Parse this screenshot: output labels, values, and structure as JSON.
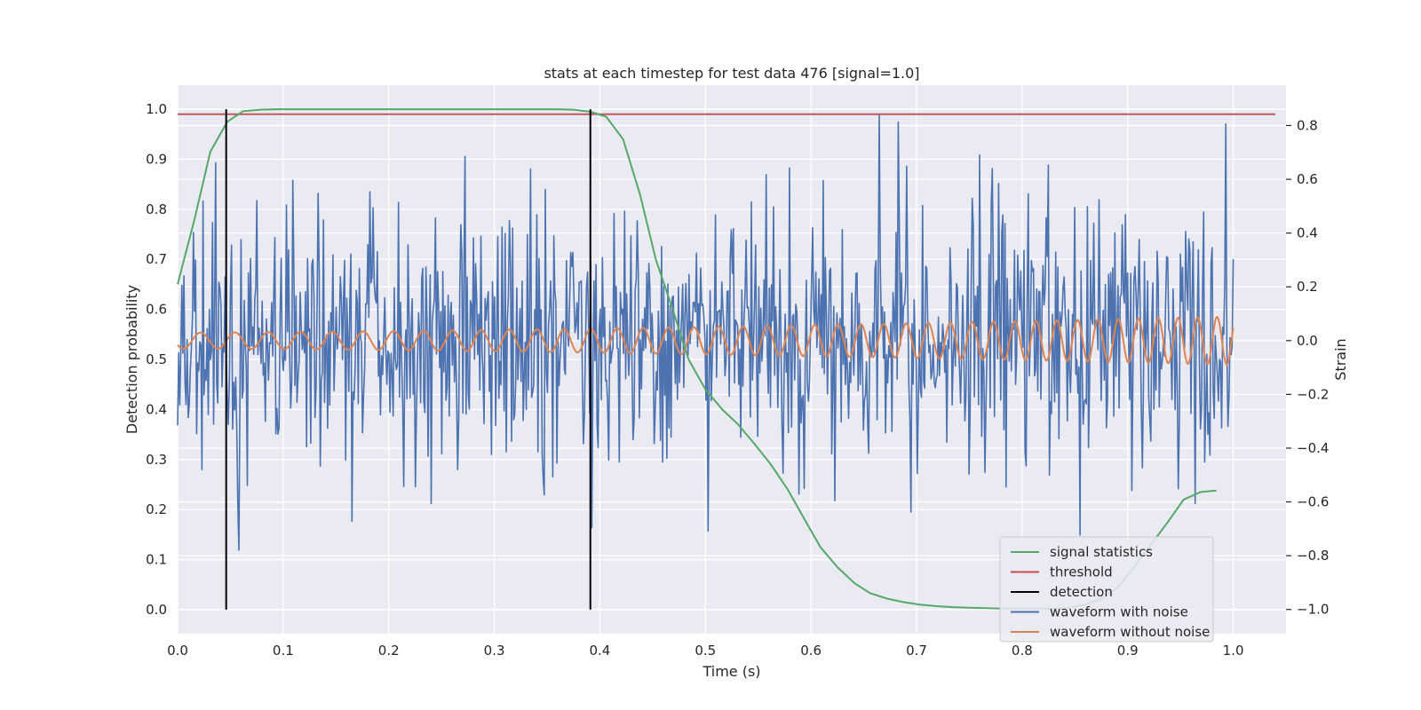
{
  "chart_data": {
    "type": "line",
    "title": "stats at each timestep for test data 476 [signal=1.0]",
    "xlabel": "Time (s)",
    "ylabel_left": "Detection probability",
    "ylabel_right": "Strain",
    "xlim": [
      0.0,
      1.05
    ],
    "ylim_left": [
      -0.048,
      1.048
    ],
    "ylim_right": [
      -1.09,
      0.95
    ],
    "x_ticks": [
      "0.0",
      "0.1",
      "0.2",
      "0.3",
      "0.4",
      "0.5",
      "0.6",
      "0.7",
      "0.8",
      "0.9",
      "1.0"
    ],
    "x_tick_values": [
      0.0,
      0.1,
      0.2,
      0.3,
      0.4,
      0.5,
      0.6,
      0.7,
      0.8,
      0.9,
      1.0
    ],
    "y_left_ticks": [
      "0.0",
      "0.1",
      "0.2",
      "0.3",
      "0.4",
      "0.5",
      "0.6",
      "0.7",
      "0.8",
      "0.9",
      "1.0"
    ],
    "y_left_tick_values": [
      0.0,
      0.1,
      0.2,
      0.3,
      0.4,
      0.5,
      0.6,
      0.7,
      0.8,
      0.9,
      1.0
    ],
    "y_right_ticks": [
      "−1.0",
      "−0.8",
      "−0.6",
      "−0.4",
      "−0.2",
      "0.0",
      "0.2",
      "0.4",
      "0.6",
      "0.8"
    ],
    "y_right_tick_values": [
      -1.0,
      -0.8,
      -0.6,
      -0.4,
      -0.2,
      0.0,
      0.2,
      0.4,
      0.6,
      0.8
    ],
    "grid": true,
    "legend_position": "bottom-right",
    "legend": [
      {
        "label": "signal statistics",
        "color": "#55a868"
      },
      {
        "label": "threshold",
        "color": "#c44e52"
      },
      {
        "label": "detection",
        "color": "#000000"
      },
      {
        "label": "waveform with noise",
        "color": "#4c72b0"
      },
      {
        "label": "waveform without noise",
        "color": "#dd8452"
      }
    ],
    "series": [
      {
        "name": "signal statistics",
        "axis": "left",
        "color": "#55a868",
        "x": [
          0.0,
          0.016,
          0.031,
          0.047,
          0.062,
          0.078,
          0.094,
          0.109,
          0.125,
          0.14,
          0.156,
          0.172,
          0.188,
          0.203,
          0.219,
          0.234,
          0.25,
          0.266,
          0.281,
          0.297,
          0.312,
          0.328,
          0.344,
          0.359,
          0.375,
          0.391,
          0.406,
          0.422,
          0.438,
          0.453,
          0.469,
          0.484,
          0.5,
          0.516,
          0.531,
          0.547,
          0.562,
          0.578,
          0.594,
          0.609,
          0.625,
          0.641,
          0.656,
          0.672,
          0.688,
          0.703,
          0.719,
          0.734,
          0.75,
          0.766,
          0.781,
          0.797,
          0.812,
          0.828,
          0.844,
          0.859,
          0.875,
          0.891,
          0.906,
          0.922,
          0.938,
          0.953,
          0.969,
          0.984
        ],
        "y": [
          0.65,
          0.78,
          0.915,
          0.975,
          0.996,
          0.999,
          1.0,
          1.0,
          1.0,
          1.0,
          1.0,
          1.0,
          1.0,
          1.0,
          1.0,
          1.0,
          1.0,
          1.0,
          1.0,
          1.0,
          1.0,
          1.0,
          1.0,
          1.0,
          0.999,
          0.995,
          0.985,
          0.94,
          0.83,
          0.7,
          0.6,
          0.5,
          0.44,
          0.4,
          0.37,
          0.33,
          0.29,
          0.24,
          0.18,
          0.125,
          0.085,
          0.053,
          0.033,
          0.022,
          0.015,
          0.01,
          0.007,
          0.005,
          0.004,
          0.003,
          0.002,
          0.002,
          0.002,
          0.002,
          0.004,
          0.01,
          0.021,
          0.045,
          0.085,
          0.13,
          0.175,
          0.22,
          0.235,
          0.238
        ]
      },
      {
        "name": "threshold",
        "axis": "left",
        "color": "#c44e52",
        "x": [
          0.0,
          1.04
        ],
        "y": [
          0.99,
          0.99
        ]
      },
      {
        "name": "detection",
        "axis": "left",
        "color": "#000000",
        "segments": [
          {
            "x": 0.046,
            "y": [
              0.0,
              1.0
            ]
          },
          {
            "x": 0.391,
            "y": [
              0.0,
              1.0
            ]
          }
        ]
      },
      {
        "name": "waveform with noise",
        "axis": "right",
        "color": "#4c72b0",
        "x_range": [
          0.0,
          1.0
        ],
        "samples": 1000,
        "y_range": [
          -1.0,
          0.85
        ],
        "y_std": 0.25
      },
      {
        "name": "waveform without noise",
        "axis": "right",
        "color": "#dd8452",
        "x_range": [
          0.0,
          1.0
        ],
        "samples": 1000,
        "amplitude_start": 0.03,
        "amplitude_end": 0.09,
        "frequency_start_hz": 30,
        "frequency_end_hz": 55
      }
    ]
  }
}
